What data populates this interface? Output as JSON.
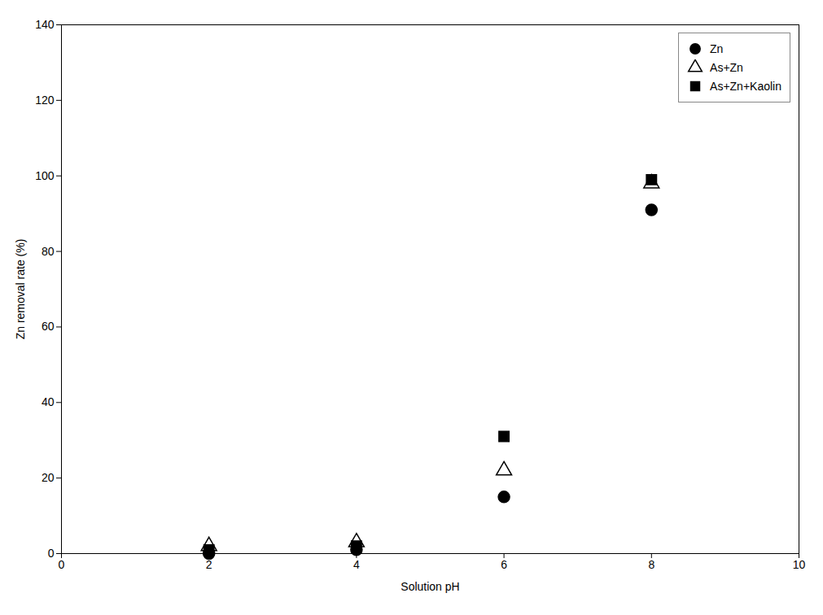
{
  "chart_data": {
    "type": "scatter",
    "xlabel": "Solution pH",
    "ylabel": "Zn removal rate (%)",
    "xlim": [
      0,
      10
    ],
    "ylim": [
      0,
      140
    ],
    "xticks": [
      0,
      2,
      4,
      6,
      8,
      10
    ],
    "yticks": [
      0,
      20,
      40,
      60,
      80,
      100,
      120,
      140
    ],
    "grid": false,
    "legend": "upper right",
    "series": [
      {
        "name": "Zn",
        "color": "black",
        "marker": "circle",
        "x": [
          2,
          4,
          6,
          8
        ],
        "values": [
          0,
          1,
          15,
          91
        ]
      },
      {
        "name": "As+Zn",
        "color": "black",
        "marker": "triangle-open",
        "x": [
          2,
          4,
          6,
          8
        ],
        "values": [
          2,
          3,
          22,
          98
        ]
      },
      {
        "name": "As+Zn+Kaolin",
        "color": "black",
        "marker": "square",
        "x": [
          2,
          4,
          6,
          8
        ],
        "values": [
          1,
          2,
          31,
          99
        ]
      }
    ]
  }
}
